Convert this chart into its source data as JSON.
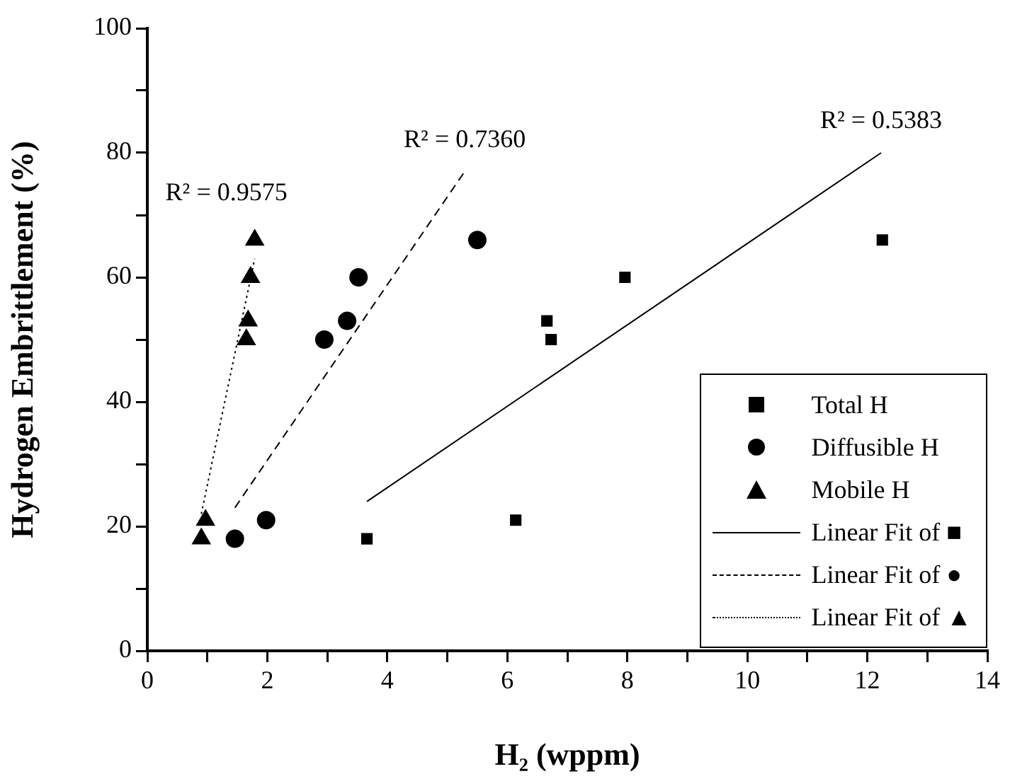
{
  "chart_data": {
    "type": "scatter",
    "xlabel": "H₂ (wppm)",
    "ylabel": "Hydrogen Embrittlement (%)",
    "xlim": [
      0,
      14
    ],
    "xticks": [
      0,
      {
        "value": 1,
        "label": null
      },
      2,
      {
        "value": 3,
        "label": null
      },
      4,
      {
        "value": 5,
        "label": null
      },
      6,
      {
        "value": 7,
        "label": null
      },
      8,
      {
        "value": 9,
        "label": null
      },
      10,
      {
        "value": 11,
        "label": null
      },
      12,
      {
        "value": 13,
        "label": null
      },
      14
    ],
    "ylim": [
      0,
      100
    ],
    "yticks": [
      0,
      {
        "value": 10,
        "label": null
      },
      20,
      {
        "value": 30,
        "label": null
      },
      40,
      {
        "value": 50,
        "label": null
      },
      60,
      {
        "value": 70,
        "label": null
      },
      80,
      {
        "value": 90,
        "label": null
      },
      100
    ],
    "grid": false,
    "legend": "bottom right",
    "series": [
      {
        "name": "Total H",
        "marker": "square",
        "color": "#000000",
        "x": [
          3.66,
          6.14,
          6.66,
          6.73,
          7.96,
          12.25
        ],
        "values": [
          18,
          21,
          53,
          50,
          60,
          66
        ]
      },
      {
        "name": "Diffusible H",
        "marker": "circle",
        "color": "#000000",
        "x": [
          1.46,
          1.98,
          2.95,
          3.33,
          3.52,
          5.5
        ],
        "values": [
          18,
          21,
          50,
          53,
          60,
          66
        ]
      },
      {
        "name": "Mobile H",
        "marker": "triangle",
        "color": "#000000",
        "x": [
          0.9,
          0.97,
          1.65,
          1.68,
          1.72,
          1.79
        ],
        "values": [
          18,
          21,
          50,
          53,
          60,
          66
        ]
      },
      {
        "name": "Linear Fit of ■",
        "type": "line",
        "marker": "none",
        "line_style": "solid",
        "color": "#000000",
        "x": [
          3.66,
          12.23
        ],
        "values": [
          24,
          80
        ]
      },
      {
        "name": "Linear Fit of ●",
        "type": "line",
        "marker": "none",
        "line_style": "dashed",
        "color": "#000000",
        "x": [
          1.46,
          5.29
        ],
        "values": [
          23,
          77
        ]
      },
      {
        "name": "Linear Fit of ▲",
        "type": "line",
        "marker": "none",
        "line_style": "dotted",
        "color": "#000000",
        "x": [
          0.9,
          1.79
        ],
        "values": [
          22,
          63
        ]
      }
    ],
    "annotations": [
      "R² = 0.5383",
      "R² = 0.7360",
      "R² = 0.9575"
    ]
  }
}
